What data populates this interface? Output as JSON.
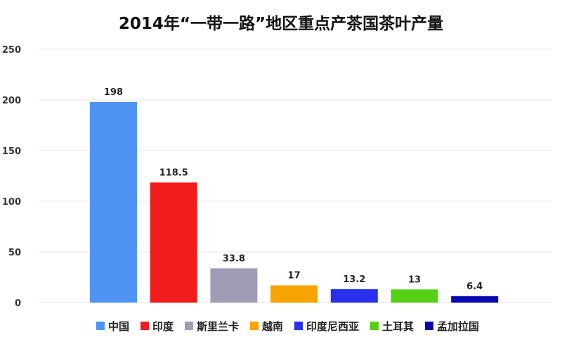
{
  "chart_data": {
    "type": "bar",
    "title": "2014年“一带一路”地区重点产茶国茶叶产量",
    "xlabel": "",
    "ylabel": "",
    "ylim": [
      0,
      250
    ],
    "yticks": [
      0,
      50,
      100,
      150,
      200,
      250
    ],
    "grid": true,
    "legend_position": "bottom",
    "categories": [
      "中国",
      "印度",
      "斯里兰卡",
      "越南",
      "印度尼西亚",
      "土耳其",
      "孟加拉国"
    ],
    "values": [
      198,
      118.5,
      33.8,
      17,
      13.2,
      13,
      6.4
    ],
    "data_labels": [
      "198",
      "118.5",
      "33.8",
      "17",
      "13.2",
      "13",
      "6.4"
    ],
    "colors": [
      "#4f94f5",
      "#f21c1c",
      "#a09cb6",
      "#f7a300",
      "#2830ee",
      "#55d012",
      "#0909b0"
    ]
  }
}
